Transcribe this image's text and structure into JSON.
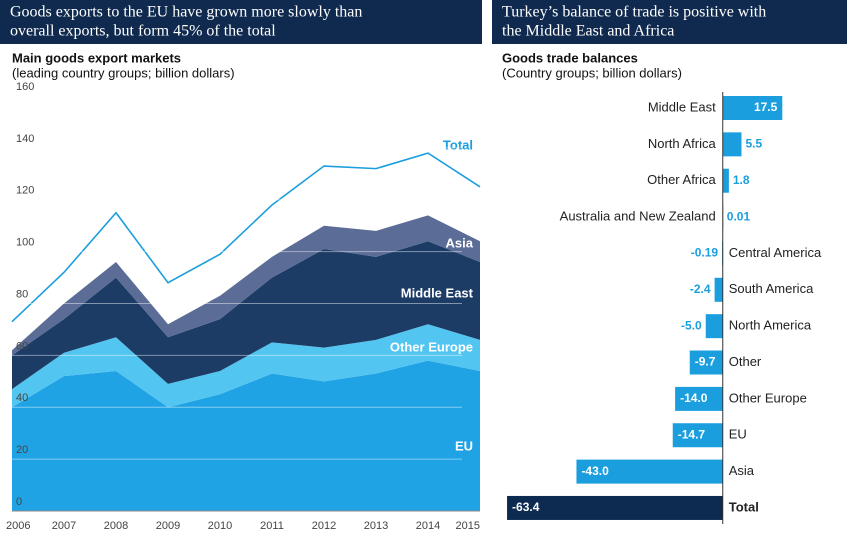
{
  "chart_data": [
    {
      "type": "area",
      "title": [
        "Goods exports to the EU have grown more slowly than",
        "overall exports, but form 45% of the total"
      ],
      "subtitle": "Main goods export markets",
      "subtitle2": "(leading country groups; billion dollars)",
      "categories": [
        "2006",
        "2007",
        "2008",
        "2009",
        "2010",
        "2011",
        "2012",
        "2013",
        "2014",
        "2015"
      ],
      "ylim": [
        0,
        160
      ],
      "yticks": [
        0,
        20,
        40,
        60,
        80,
        100,
        120,
        140,
        160
      ],
      "grid": true,
      "stacked": true,
      "series": [
        {
          "name": "EU",
          "color": "#1fa3e4",
          "values": [
            40,
            52,
            54,
            40,
            45,
            53,
            50,
            53,
            58,
            54
          ]
        },
        {
          "name": "Other Europe",
          "color": "#52c5f1",
          "values": [
            7,
            9,
            13,
            9,
            9,
            12,
            13,
            13,
            14,
            12
          ]
        },
        {
          "name": "Middle East",
          "color": "#1c3c66",
          "values": [
            13,
            13,
            23,
            18,
            20,
            25,
            38,
            32,
            32,
            30
          ]
        },
        {
          "name": "Asia",
          "color": "#5b6c96",
          "values": [
            2,
            6,
            6,
            5,
            9,
            8,
            9,
            10,
            10,
            8
          ]
        },
        {
          "name": "Total",
          "color": "#1a9ede",
          "line": true,
          "values": [
            73,
            92,
            115,
            88,
            99,
            118,
            133,
            132,
            138,
            125
          ]
        }
      ]
    },
    {
      "type": "hbar",
      "title": [
        "Turkey’s balance of trade is positive with",
        "the Middle East and Africa"
      ],
      "subtitle": "Goods trade balances",
      "subtitle2": "(Country groups; billion dollars)",
      "categories": [
        "Middle East",
        "North Africa",
        "Other Africa",
        "Australia and New Zealand",
        "Central America",
        "South America",
        "North America",
        "Other",
        "Other Europe",
        "EU",
        "Asia",
        "Total"
      ],
      "values": [
        17.5,
        5.5,
        1.8,
        0.01,
        -0.19,
        -2.4,
        -5.0,
        -9.7,
        -14.0,
        -14.7,
        -43.0,
        -63.4
      ],
      "value_labels": [
        "17.5",
        "5.5",
        "1.8",
        "0.01",
        "-0.19",
        "-2.4",
        "-5.0",
        "-9.7",
        "-14.0",
        "-14.7",
        "-43.0",
        "-63.4"
      ],
      "colors": [
        "#1a9ede",
        "#1a9ede",
        "#1a9ede",
        "#1a9ede",
        "#1a9ede",
        "#1a9ede",
        "#1a9ede",
        "#1a9ede",
        "#1a9ede",
        "#1a9ede",
        "#1a9ede",
        "#0d2a50"
      ],
      "xlim": [
        -64,
        18
      ]
    }
  ]
}
